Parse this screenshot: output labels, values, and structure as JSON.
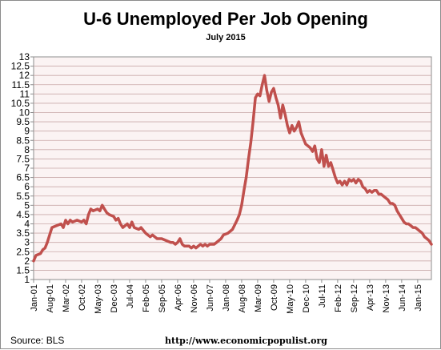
{
  "chart_data": {
    "type": "line",
    "title": "U-6 Unemployed Per Job Opening",
    "subtitle": "July 2015",
    "xlabel": "",
    "ylabel": "",
    "ylim": [
      1,
      13
    ],
    "yticks": [
      "1",
      "1.5",
      "2",
      "2.5",
      "3",
      "3.5",
      "4",
      "4.5",
      "5",
      "5.5",
      "6",
      "6.5",
      "7",
      "7.5",
      "8",
      "8.5",
      "9",
      "9.5",
      "10",
      "10.5",
      "11",
      "11.5",
      "12",
      "12.5",
      "13"
    ],
    "xtick_labels": [
      "Jan-01",
      "Aug-01",
      "Mar-02",
      "Oct-02",
      "May-03",
      "Dec-03",
      "Jul-04",
      "Feb-05",
      "Sep-05",
      "Apr-06",
      "Nov-06",
      "Jun-07",
      "Jan-08",
      "Aug-08",
      "Mar-09",
      "Oct-09",
      "May-10",
      "Dec-10",
      "Jul-11",
      "Feb-12",
      "Sep-12",
      "Apr-13",
      "Nov-13",
      "Jun-14",
      "Jan-15"
    ],
    "grid": true,
    "legend": "none",
    "line_color": "#c0504d",
    "plot_background": "#fbf3f3",
    "grid_color": "#c9a9a9",
    "keypoints": [
      [
        "Jan-01",
        2.0
      ],
      [
        "Feb-01",
        2.3
      ],
      [
        "Apr-01",
        2.4
      ],
      [
        "May-01",
        2.6
      ],
      [
        "Jun-01",
        2.7
      ],
      [
        "Jul-01",
        3.0
      ],
      [
        "Aug-01",
        3.4
      ],
      [
        "Sep-01",
        3.8
      ],
      [
        "Nov-01",
        3.9
      ],
      [
        "Jan-02",
        4.0
      ],
      [
        "Feb-02",
        3.8
      ],
      [
        "Mar-02",
        4.2
      ],
      [
        "Apr-02",
        4.0
      ],
      [
        "May-02",
        4.2
      ],
      [
        "Jun-02",
        4.1
      ],
      [
        "Aug-02",
        4.2
      ],
      [
        "Oct-02",
        4.1
      ],
      [
        "Nov-02",
        4.2
      ],
      [
        "Dec-02",
        4.0
      ],
      [
        "Jan-03",
        4.5
      ],
      [
        "Feb-03",
        4.8
      ],
      [
        "Mar-03",
        4.7
      ],
      [
        "May-03",
        4.8
      ],
      [
        "Jun-03",
        4.7
      ],
      [
        "Jul-03",
        5.0
      ],
      [
        "Aug-03",
        4.8
      ],
      [
        "Sep-03",
        4.6
      ],
      [
        "Oct-03",
        4.5
      ],
      [
        "Dec-03",
        4.4
      ],
      [
        "Jan-04",
        4.2
      ],
      [
        "Feb-04",
        4.3
      ],
      [
        "Mar-04",
        4.0
      ],
      [
        "Apr-04",
        3.8
      ],
      [
        "Jun-04",
        4.0
      ],
      [
        "Jul-04",
        3.8
      ],
      [
        "Aug-04",
        4.1
      ],
      [
        "Sep-04",
        3.8
      ],
      [
        "Nov-04",
        3.7
      ],
      [
        "Dec-04",
        3.8
      ],
      [
        "Feb-05",
        3.5
      ],
      [
        "Apr-05",
        3.3
      ],
      [
        "May-05",
        3.4
      ],
      [
        "Jul-05",
        3.2
      ],
      [
        "Sep-05",
        3.2
      ],
      [
        "Nov-05",
        3.1
      ],
      [
        "Jan-06",
        3.0
      ],
      [
        "Feb-06",
        3.0
      ],
      [
        "Mar-06",
        2.9
      ],
      [
        "Apr-06",
        3.0
      ],
      [
        "May-06",
        3.2
      ],
      [
        "Jun-06",
        2.9
      ],
      [
        "Jul-06",
        2.8
      ],
      [
        "Sep-06",
        2.8
      ],
      [
        "Oct-06",
        2.7
      ],
      [
        "Nov-06",
        2.8
      ],
      [
        "Dec-06",
        2.7
      ],
      [
        "Feb-07",
        2.9
      ],
      [
        "Mar-07",
        2.8
      ],
      [
        "Apr-07",
        2.9
      ],
      [
        "May-07",
        2.8
      ],
      [
        "Jun-07",
        2.9
      ],
      [
        "Aug-07",
        2.9
      ],
      [
        "Sep-07",
        3.0
      ],
      [
        "Nov-07",
        3.2
      ],
      [
        "Dec-07",
        3.4
      ],
      [
        "Feb-08",
        3.5
      ],
      [
        "Apr-08",
        3.7
      ],
      [
        "Jun-08",
        4.2
      ],
      [
        "Jul-08",
        4.5
      ],
      [
        "Aug-08",
        5.0
      ],
      [
        "Sep-08",
        5.8
      ],
      [
        "Oct-08",
        6.5
      ],
      [
        "Nov-08",
        7.5
      ],
      [
        "Dec-08",
        8.4
      ],
      [
        "Jan-09",
        9.5
      ],
      [
        "Feb-09",
        10.8
      ],
      [
        "Mar-09",
        11.0
      ],
      [
        "Apr-09",
        10.9
      ],
      [
        "May-09",
        11.5
      ],
      [
        "Jun-09",
        12.0
      ],
      [
        "Jul-09",
        11.2
      ],
      [
        "Aug-09",
        10.6
      ],
      [
        "Sep-09",
        11.1
      ],
      [
        "Oct-09",
        11.3
      ],
      [
        "Nov-09",
        10.8
      ],
      [
        "Dec-09",
        10.4
      ],
      [
        "Jan-10",
        9.7
      ],
      [
        "Feb-10",
        10.4
      ],
      [
        "Mar-10",
        9.9
      ],
      [
        "Apr-10",
        9.3
      ],
      [
        "May-10",
        8.9
      ],
      [
        "Jun-10",
        9.3
      ],
      [
        "Jul-10",
        9.0
      ],
      [
        "Aug-10",
        9.2
      ],
      [
        "Sep-10",
        9.5
      ],
      [
        "Oct-10",
        8.9
      ],
      [
        "Nov-10",
        8.6
      ],
      [
        "Dec-10",
        8.3
      ],
      [
        "Feb-11",
        8.1
      ],
      [
        "Mar-11",
        7.9
      ],
      [
        "Apr-11",
        8.2
      ],
      [
        "May-11",
        7.5
      ],
      [
        "Jun-11",
        7.3
      ],
      [
        "Jul-11",
        8.0
      ],
      [
        "Aug-11",
        7.1
      ],
      [
        "Sep-11",
        7.7
      ],
      [
        "Oct-11",
        7.1
      ],
      [
        "Nov-11",
        7.3
      ],
      [
        "Dec-11",
        6.9
      ],
      [
        "Jan-12",
        6.5
      ],
      [
        "Feb-12",
        6.2
      ],
      [
        "Mar-12",
        6.3
      ],
      [
        "Apr-12",
        6.1
      ],
      [
        "May-12",
        6.3
      ],
      [
        "Jun-12",
        6.1
      ],
      [
        "Jul-12",
        6.4
      ],
      [
        "Aug-12",
        6.3
      ],
      [
        "Sep-12",
        6.4
      ],
      [
        "Oct-12",
        6.2
      ],
      [
        "Nov-12",
        6.4
      ],
      [
        "Dec-12",
        6.3
      ],
      [
        "Jan-13",
        6.0
      ],
      [
        "Feb-13",
        5.9
      ],
      [
        "Mar-13",
        5.7
      ],
      [
        "Apr-13",
        5.8
      ],
      [
        "May-13",
        5.7
      ],
      [
        "Jun-13",
        5.8
      ],
      [
        "Jul-13",
        5.8
      ],
      [
        "Aug-13",
        5.6
      ],
      [
        "Sep-13",
        5.6
      ],
      [
        "Oct-13",
        5.5
      ],
      [
        "Nov-13",
        5.4
      ],
      [
        "Dec-13",
        5.3
      ],
      [
        "Jan-14",
        5.1
      ],
      [
        "Feb-14",
        5.1
      ],
      [
        "Mar-14",
        5.0
      ],
      [
        "Apr-14",
        4.7
      ],
      [
        "May-14",
        4.5
      ],
      [
        "Jun-14",
        4.3
      ],
      [
        "Jul-14",
        4.1
      ],
      [
        "Aug-14",
        4.0
      ],
      [
        "Sep-14",
        4.0
      ],
      [
        "Oct-14",
        3.9
      ],
      [
        "Nov-14",
        3.8
      ],
      [
        "Dec-14",
        3.8
      ],
      [
        "Jan-15",
        3.7
      ],
      [
        "Feb-15",
        3.6
      ],
      [
        "Mar-15",
        3.5
      ],
      [
        "Apr-15",
        3.3
      ],
      [
        "May-15",
        3.2
      ],
      [
        "Jun-15",
        3.1
      ],
      [
        "Jul-15",
        2.9
      ]
    ]
  },
  "footer": {
    "source": "Source:  BLS",
    "url": "http://www.economicpopulist.org"
  }
}
